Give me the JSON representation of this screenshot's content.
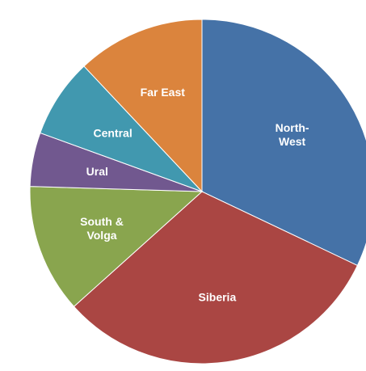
{
  "chart_data": {
    "type": "pie",
    "slices": [
      {
        "label": "North-\nWest",
        "value": 33.6,
        "color": "#4572A7"
      },
      {
        "label": "Siberia",
        "value": 32.8,
        "color": "#AA4643"
      },
      {
        "label": "South &\nVolga",
        "value": 12.7,
        "color": "#89A54E"
      },
      {
        "label": "Ural",
        "value": 5.3,
        "color": "#71588F"
      },
      {
        "label": "Central",
        "value": 7.8,
        "color": "#4198AF"
      },
      {
        "label": "Far East",
        "value": 12.6,
        "color": "#DB843D"
      }
    ]
  }
}
